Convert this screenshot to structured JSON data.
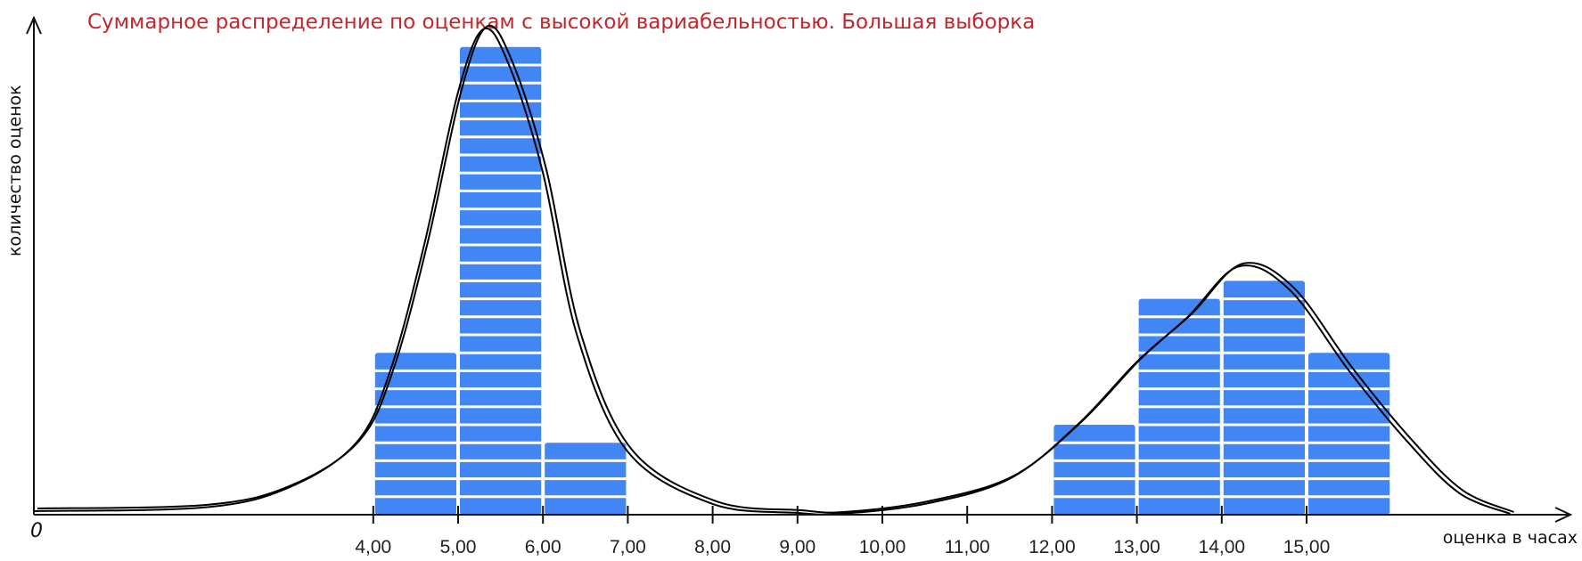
{
  "chart_data": {
    "type": "bar",
    "title": "Суммарное распределение по оценкам с высокой вариабельностью. Большая выборка",
    "xlabel": "оценка в часах",
    "ylabel": "количество оценок",
    "origin_label": "0",
    "x_ticks": [
      "4,00",
      "5,00",
      "6,00",
      "7,00",
      "8,00",
      "9,00",
      "10,00",
      "11,00",
      "12,00",
      "13,00",
      "14,00",
      "15,00"
    ],
    "x_tick_values": [
      4,
      5,
      6,
      7,
      8,
      9,
      10,
      11,
      12,
      13,
      14,
      15
    ],
    "xlim": [
      0,
      17.4
    ],
    "ylim": [
      0,
      28
    ],
    "bins": [
      {
        "from": 4,
        "to": 5,
        "count": 9
      },
      {
        "from": 5,
        "to": 6,
        "count": 26
      },
      {
        "from": 6,
        "to": 7,
        "count": 4
      },
      {
        "from": 12,
        "to": 13,
        "count": 5
      },
      {
        "from": 13,
        "to": 14,
        "count": 12
      },
      {
        "from": 14,
        "to": 15,
        "count": 13
      },
      {
        "from": 15,
        "to": 16,
        "count": 9
      }
    ],
    "curve": [
      [
        0,
        0.2
      ],
      [
        2,
        0.4
      ],
      [
        3,
        1.5
      ],
      [
        3.8,
        4
      ],
      [
        4.2,
        8
      ],
      [
        4.6,
        15
      ],
      [
        5,
        23.5
      ],
      [
        5.3,
        27
      ],
      [
        5.6,
        25
      ],
      [
        6,
        19
      ],
      [
        6.4,
        10
      ],
      [
        7,
        3.5
      ],
      [
        8,
        0.6
      ],
      [
        9,
        0.1
      ],
      [
        9.5,
        0
      ],
      [
        10.5,
        0.6
      ],
      [
        11.5,
        2
      ],
      [
        12.3,
        5
      ],
      [
        13,
        8.5
      ],
      [
        13.6,
        11
      ],
      [
        14.2,
        13.8
      ],
      [
        14.8,
        12.5
      ],
      [
        15.5,
        8
      ],
      [
        16.2,
        4
      ],
      [
        16.8,
        1.2
      ],
      [
        17.4,
        0
      ]
    ],
    "grid": false,
    "legend": "none",
    "colors": {
      "bar": "#4285f4",
      "stripe": "#ffffff",
      "curve": "#000000",
      "title": "#c0282d",
      "axis": "#111111"
    }
  }
}
